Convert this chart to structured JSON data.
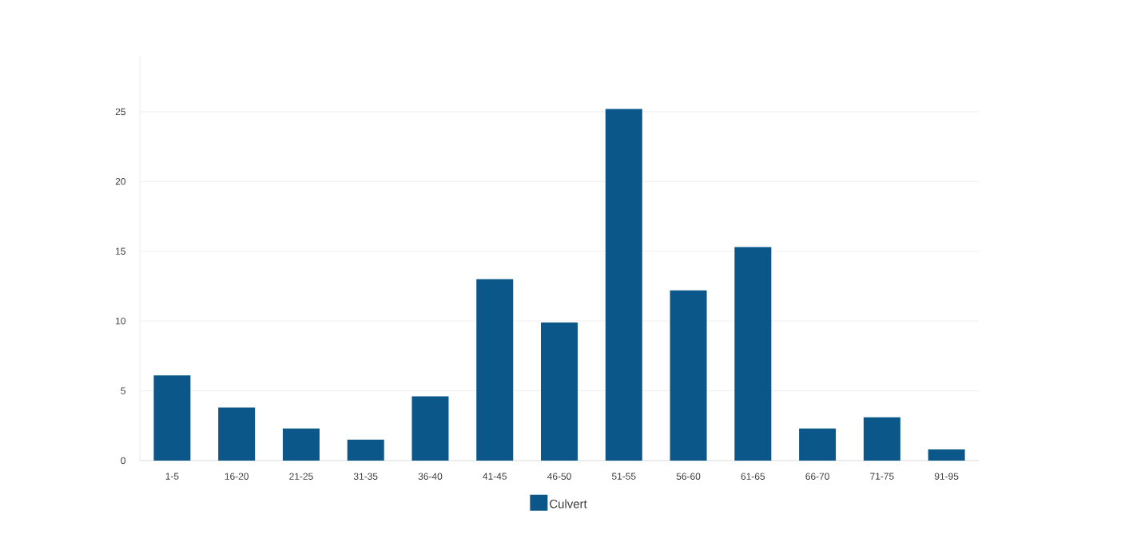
{
  "chart_data": {
    "type": "bar",
    "categories": [
      "1-5",
      "16-20",
      "21-25",
      "31-35",
      "36-40",
      "41-45",
      "46-50",
      "51-55",
      "56-60",
      "61-65",
      "66-70",
      "71-75",
      "91-95"
    ],
    "series": [
      {
        "name": "Culvert",
        "color": "#0b5789",
        "values": [
          6.1,
          3.8,
          2.3,
          1.5,
          4.6,
          13.0,
          9.9,
          25.2,
          12.2,
          15.3,
          2.3,
          3.1,
          0.8
        ]
      }
    ],
    "ylim": [
      0,
      29
    ],
    "yticks": [
      0,
      5,
      10,
      15,
      20,
      25
    ],
    "grid": "y",
    "legend": "bottom"
  }
}
